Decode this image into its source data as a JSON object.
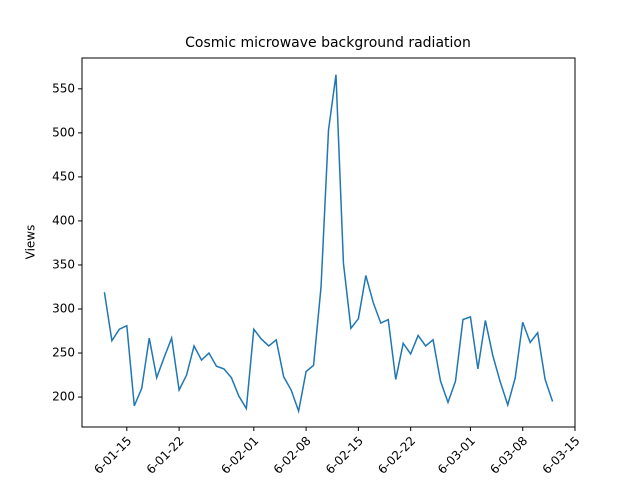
{
  "chart_data": {
    "type": "line",
    "title": "Cosmic microwave background radiation",
    "ylabel": "Views",
    "x": [
      "01-12",
      "01-13",
      "01-14",
      "01-15",
      "01-16",
      "01-17",
      "01-18",
      "01-19",
      "01-20",
      "01-21",
      "01-22",
      "01-23",
      "01-24",
      "01-25",
      "01-26",
      "01-27",
      "01-28",
      "01-29",
      "01-30",
      "01-31",
      "02-01",
      "02-02",
      "02-03",
      "02-04",
      "02-05",
      "02-06",
      "02-07",
      "02-08",
      "02-09",
      "02-10",
      "02-11",
      "02-12",
      "02-13",
      "02-14",
      "02-15",
      "02-16",
      "02-17",
      "02-18",
      "02-19",
      "02-20",
      "02-21",
      "02-22",
      "02-23",
      "02-24",
      "02-25",
      "02-26",
      "02-27",
      "02-28",
      "02-29",
      "03-01",
      "03-02",
      "03-03",
      "03-04",
      "03-05",
      "03-06",
      "03-07",
      "03-08",
      "03-09",
      "03-10",
      "03-11",
      "03-12"
    ],
    "series": [
      {
        "name": "Views",
        "color": "#1f77b4",
        "values": [
          319,
          264,
          277,
          281,
          190,
          210,
          267,
          222,
          245,
          267,
          208,
          225,
          258,
          242,
          250,
          235,
          232,
          222,
          201,
          187,
          277,
          266,
          258,
          265,
          223,
          208,
          184,
          229,
          236,
          325,
          503,
          566,
          352,
          278,
          289,
          338,
          307,
          284,
          288,
          220,
          261,
          249,
          270,
          258,
          265,
          218,
          194,
          218,
          288,
          291,
          232,
          287,
          247,
          217,
          191,
          222,
          285,
          262,
          273,
          220,
          195
        ]
      }
    ],
    "xlim": [
      "01-09",
      "03-15"
    ],
    "xticks": [
      {
        "value": "01-15",
        "label": "6-01-15"
      },
      {
        "value": "01-22",
        "label": "6-01-22"
      },
      {
        "value": "02-01",
        "label": "6-02-01"
      },
      {
        "value": "02-08",
        "label": "6-02-08"
      },
      {
        "value": "02-15",
        "label": "6-02-15"
      },
      {
        "value": "02-22",
        "label": "6-02-22"
      },
      {
        "value": "03-01",
        "label": "6-03-01"
      },
      {
        "value": "03-08",
        "label": "6-03-08"
      },
      {
        "value": "03-15",
        "label": "6-03-15"
      }
    ],
    "ylim": [
      166,
      585
    ],
    "yticks": [
      200,
      250,
      300,
      350,
      400,
      450,
      500,
      550
    ]
  }
}
